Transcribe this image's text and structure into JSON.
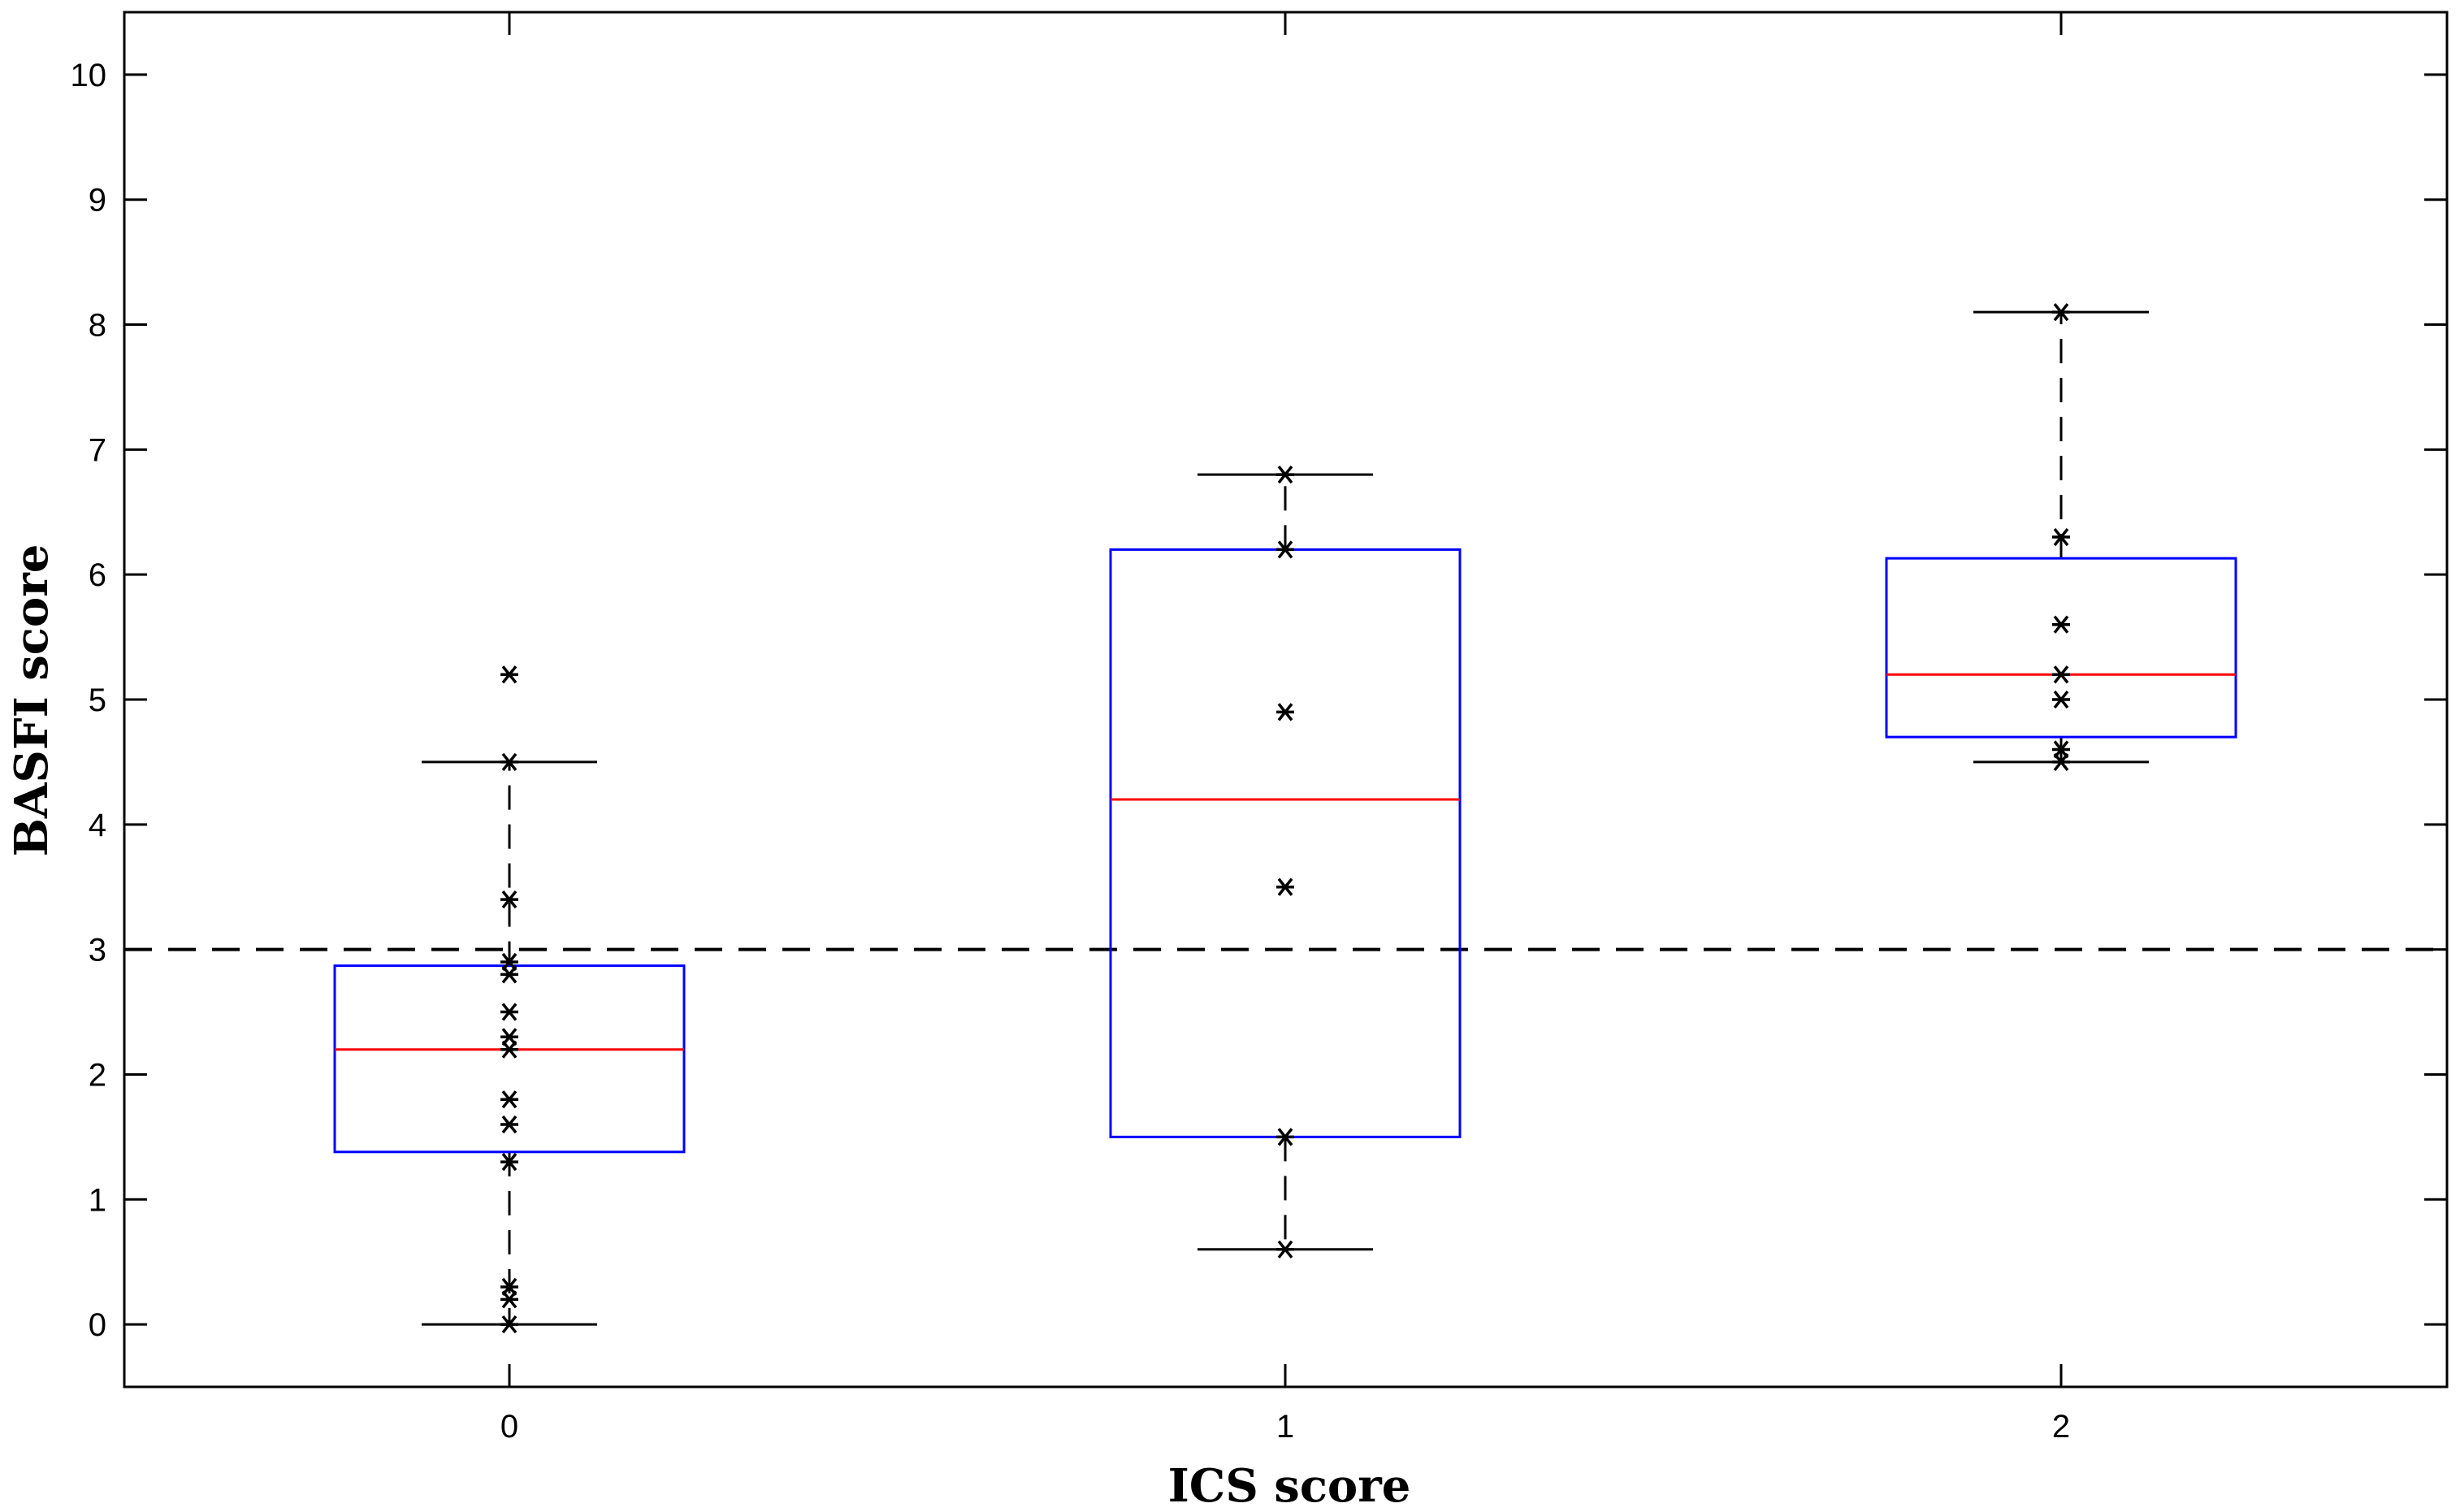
{
  "chart_data": {
    "type": "box",
    "xlabel": "ICS score",
    "ylabel": "BASFI score",
    "ylim": [
      -0.5,
      10.5
    ],
    "yticks": [
      0,
      1,
      2,
      3,
      4,
      5,
      6,
      7,
      8,
      9,
      10
    ],
    "categories": [
      "0",
      "1",
      "2"
    ],
    "reference_line": {
      "y": 3,
      "style": "dashed"
    },
    "box_color": "#0000ff",
    "median_color": "#ff0000",
    "point_color": "#000000",
    "boxes": [
      {
        "category": "0",
        "whisker_low": 0,
        "q1": 1.38,
        "median": 2.2,
        "q3": 2.87,
        "whisker_high": 4.5,
        "points": [
          0,
          0.2,
          0.3,
          1.3,
          1.6,
          1.8,
          2.2,
          2.3,
          2.5,
          2.8,
          2.9,
          3.4,
          4.5,
          5.2
        ]
      },
      {
        "category": "1",
        "whisker_low": 0.6,
        "q1": 1.5,
        "median": 4.2,
        "q3": 6.2,
        "whisker_high": 6.8,
        "points": [
          0.6,
          1.5,
          3.5,
          4.9,
          6.2,
          6.8
        ]
      },
      {
        "category": "2",
        "whisker_low": 4.5,
        "q1": 4.7,
        "median": 5.2,
        "q3": 6.13,
        "whisker_high": 8.1,
        "points": [
          4.5,
          4.6,
          5.0,
          5.2,
          5.6,
          6.3,
          8.1
        ]
      }
    ]
  }
}
